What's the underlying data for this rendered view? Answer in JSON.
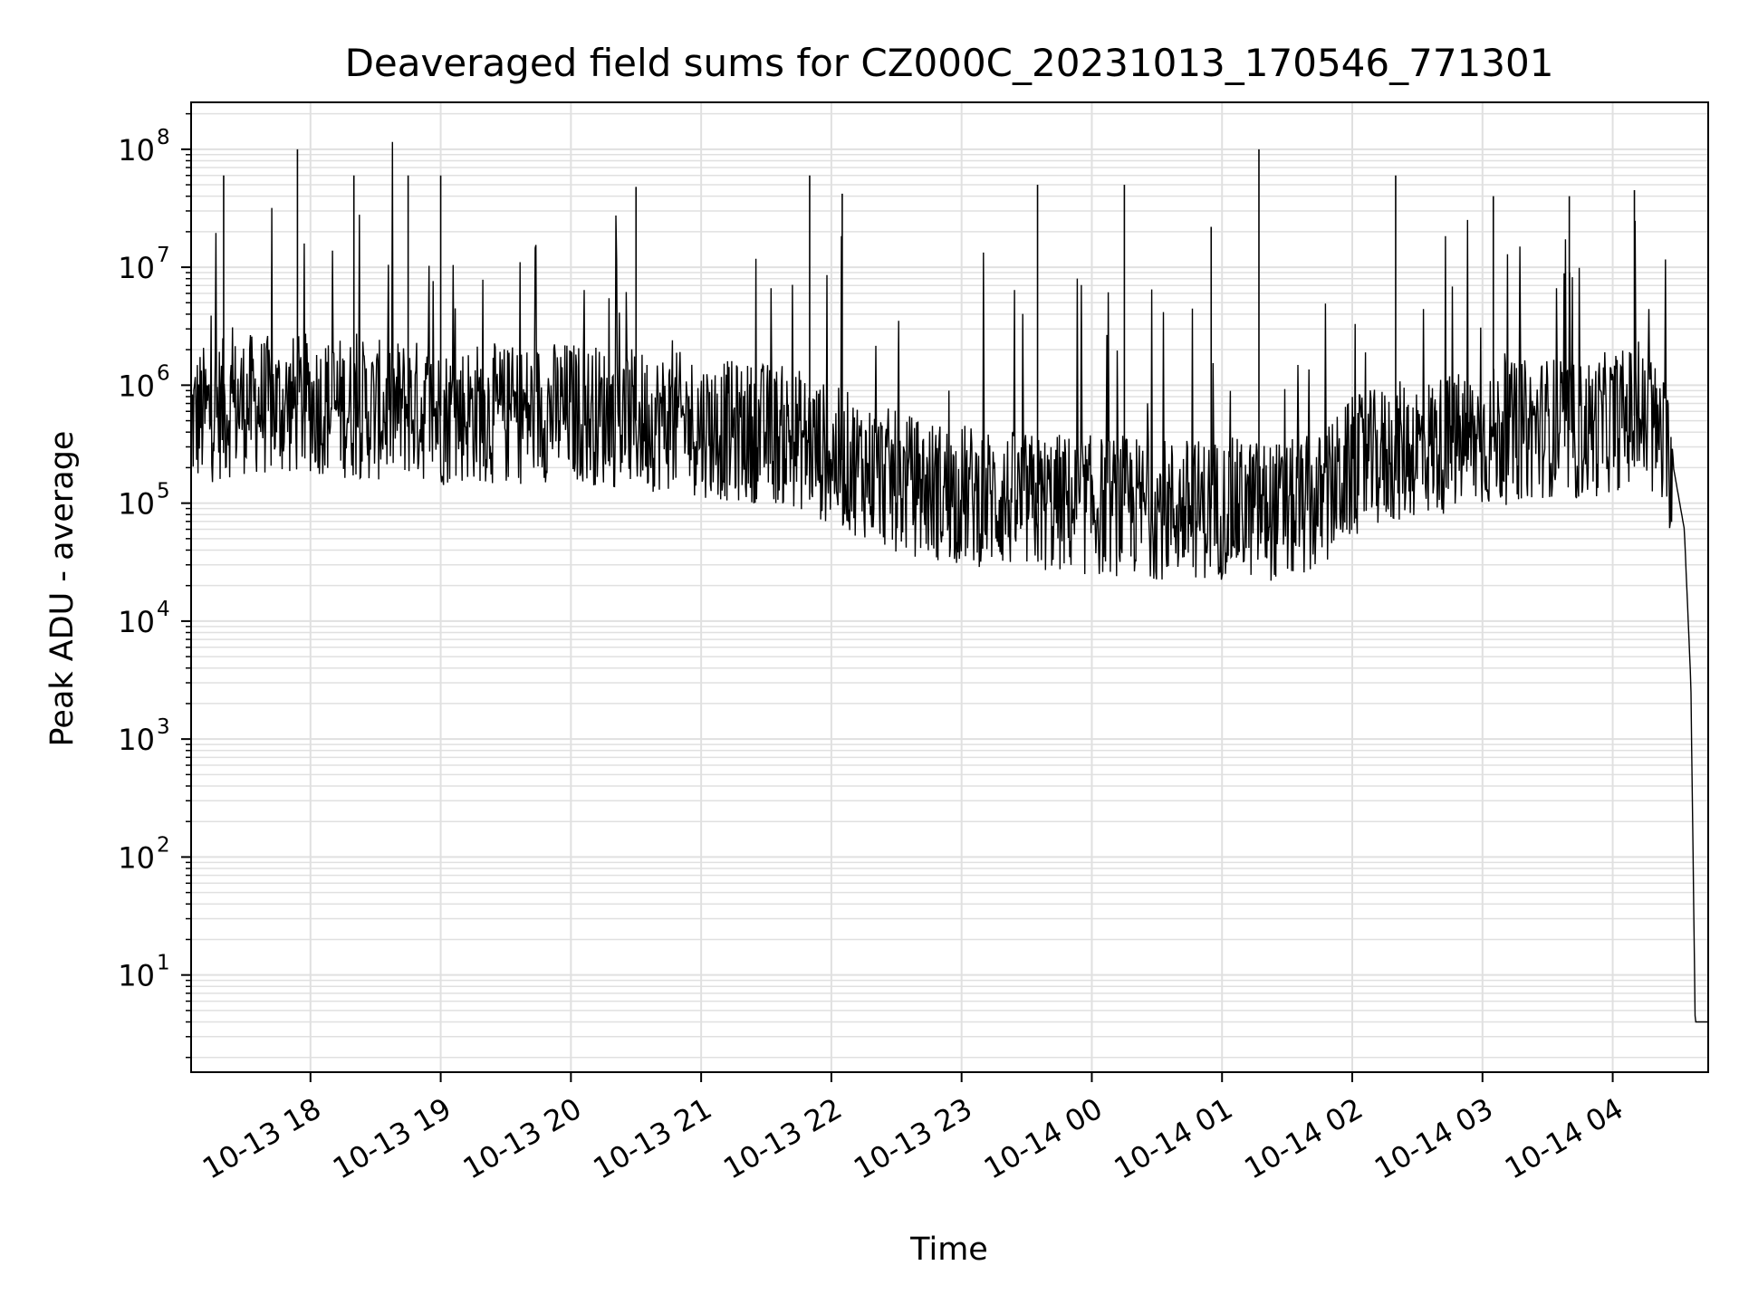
{
  "chart_data": {
    "type": "line",
    "title": "Deaveraged field sums for CZ000C_20231013_170546_771301",
    "xlabel": "Time",
    "ylabel": "Peak ADU - average",
    "yscale": "log",
    "ylim": [
      1.5,
      250000000
    ],
    "xlim": [
      "2023-10-13 17:05",
      "2023-10-14 04:44"
    ],
    "x_tick_labels": [
      "10-13 18",
      "10-13 19",
      "10-13 20",
      "10-13 21",
      "10-13 22",
      "10-13 23",
      "10-14 00",
      "10-14 01",
      "10-14 02",
      "10-14 03",
      "10-14 04"
    ],
    "y_tick_labels": [
      {
        "base": "10",
        "exp": "1"
      },
      {
        "base": "10",
        "exp": "2"
      },
      {
        "base": "10",
        "exp": "3"
      },
      {
        "base": "10",
        "exp": "4"
      },
      {
        "base": "10",
        "exp": "5"
      },
      {
        "base": "10",
        "exp": "6"
      },
      {
        "base": "10",
        "exp": "7"
      },
      {
        "base": "10",
        "exp": "8"
      }
    ],
    "grid": true,
    "line_color": "#000000",
    "grid_color": "#e0e0e0",
    "series": [
      {
        "x": [
          "2023-10-13 17:05",
          "2023-10-13 17:15",
          "2023-10-13 17:30",
          "2023-10-13 17:45",
          "2023-10-13 18:00",
          "2023-10-13 18:15",
          "2023-10-13 18:30",
          "2023-10-13 18:45",
          "2023-10-13 19:00",
          "2023-10-13 19:15",
          "2023-10-13 19:30",
          "2023-10-13 19:45",
          "2023-10-13 20:00",
          "2023-10-13 20:15",
          "2023-10-13 20:30",
          "2023-10-13 20:45",
          "2023-10-13 21:00",
          "2023-10-13 21:15",
          "2023-10-13 21:30",
          "2023-10-13 21:45",
          "2023-10-13 22:00",
          "2023-10-13 22:15",
          "2023-10-13 22:30",
          "2023-10-13 22:45",
          "2023-10-13 23:00",
          "2023-10-13 23:15",
          "2023-10-13 23:30",
          "2023-10-13 23:45",
          "2023-10-14 00:00",
          "2023-10-14 00:15",
          "2023-10-14 00:30",
          "2023-10-14 00:45",
          "2023-10-14 01:00",
          "2023-10-14 01:15",
          "2023-10-14 01:30",
          "2023-10-14 01:45",
          "2023-10-14 02:00",
          "2023-10-14 02:15",
          "2023-10-14 02:30",
          "2023-10-14 02:45",
          "2023-10-14 03:00",
          "2023-10-14 03:15",
          "2023-10-14 03:30",
          "2023-10-14 03:45",
          "2023-10-14 04:00",
          "2023-10-14 04:10",
          "2023-10-14 04:20",
          "2023-10-14 04:28",
          "2023-10-14 04:33",
          "2023-10-14 04:36",
          "2023-10-14 04:38",
          "2023-10-14 04:44"
        ],
        "y": [
          500000,
          600000,
          700000,
          650000,
          700000,
          650000,
          600000,
          650000,
          550000,
          600000,
          550000,
          600000,
          600000,
          550000,
          500000,
          500000,
          450000,
          400000,
          400000,
          350000,
          250000,
          200000,
          150000,
          130000,
          120000,
          110000,
          100000,
          100000,
          95000,
          95000,
          90000,
          90000,
          90000,
          90000,
          85000,
          100000,
          200000,
          250000,
          300000,
          320000,
          350000,
          400000,
          450000,
          400000,
          500000,
          550000,
          400000,
          200000,
          60000,
          3000,
          4,
          4
        ]
      }
    ],
    "spikes": [
      {
        "x": "2023-10-13 17:54",
        "y": 100000000
      },
      {
        "x": "2023-10-13 17:20",
        "y": 60000000
      },
      {
        "x": "2023-10-13 18:20",
        "y": 60000000
      },
      {
        "x": "2023-10-13 18:45",
        "y": 60000000
      },
      {
        "x": "2023-10-13 19:00",
        "y": 60000000
      },
      {
        "x": "2023-10-13 20:30",
        "y": 48000000
      },
      {
        "x": "2023-10-13 21:50",
        "y": 60000000
      },
      {
        "x": "2023-10-13 22:05",
        "y": 42000000
      },
      {
        "x": "2023-10-13 23:35",
        "y": 50000000
      },
      {
        "x": "2023-10-14 00:15",
        "y": 50000000
      },
      {
        "x": "2023-10-14 00:55",
        "y": 22000000
      },
      {
        "x": "2023-10-14 01:17",
        "y": 100000000
      },
      {
        "x": "2023-10-14 02:20",
        "y": 60000000
      },
      {
        "x": "2023-10-14 03:05",
        "y": 40000000
      },
      {
        "x": "2023-10-14 03:40",
        "y": 40000000
      },
      {
        "x": "2023-10-14 04:10",
        "y": 45000000
      }
    ]
  }
}
